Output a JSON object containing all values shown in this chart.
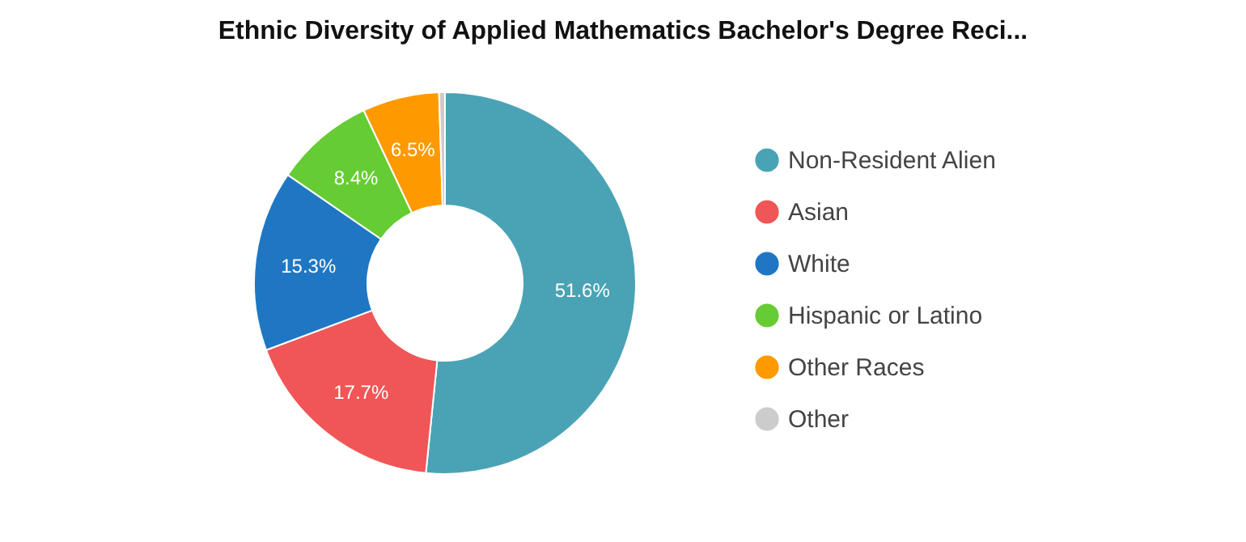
{
  "chart_data": {
    "type": "donut",
    "title": "Ethnic Diversity of Applied Mathematics Bachelor's Degree Reci...",
    "categories": [
      "Non-Resident Alien",
      "Asian",
      "White",
      "Hispanic or Latino",
      "Other Races",
      "Other"
    ],
    "values": [
      51.6,
      17.7,
      15.3,
      8.4,
      6.5,
      0.5
    ],
    "value_labels": [
      "51.6%",
      "17.7%",
      "15.3%",
      "8.4%",
      "6.5%",
      null
    ],
    "colors": [
      "#4aa3b5",
      "#f05657",
      "#1f77c4",
      "#66cc33",
      "#ff9900",
      "#cccccc"
    ],
    "legend": "right"
  }
}
